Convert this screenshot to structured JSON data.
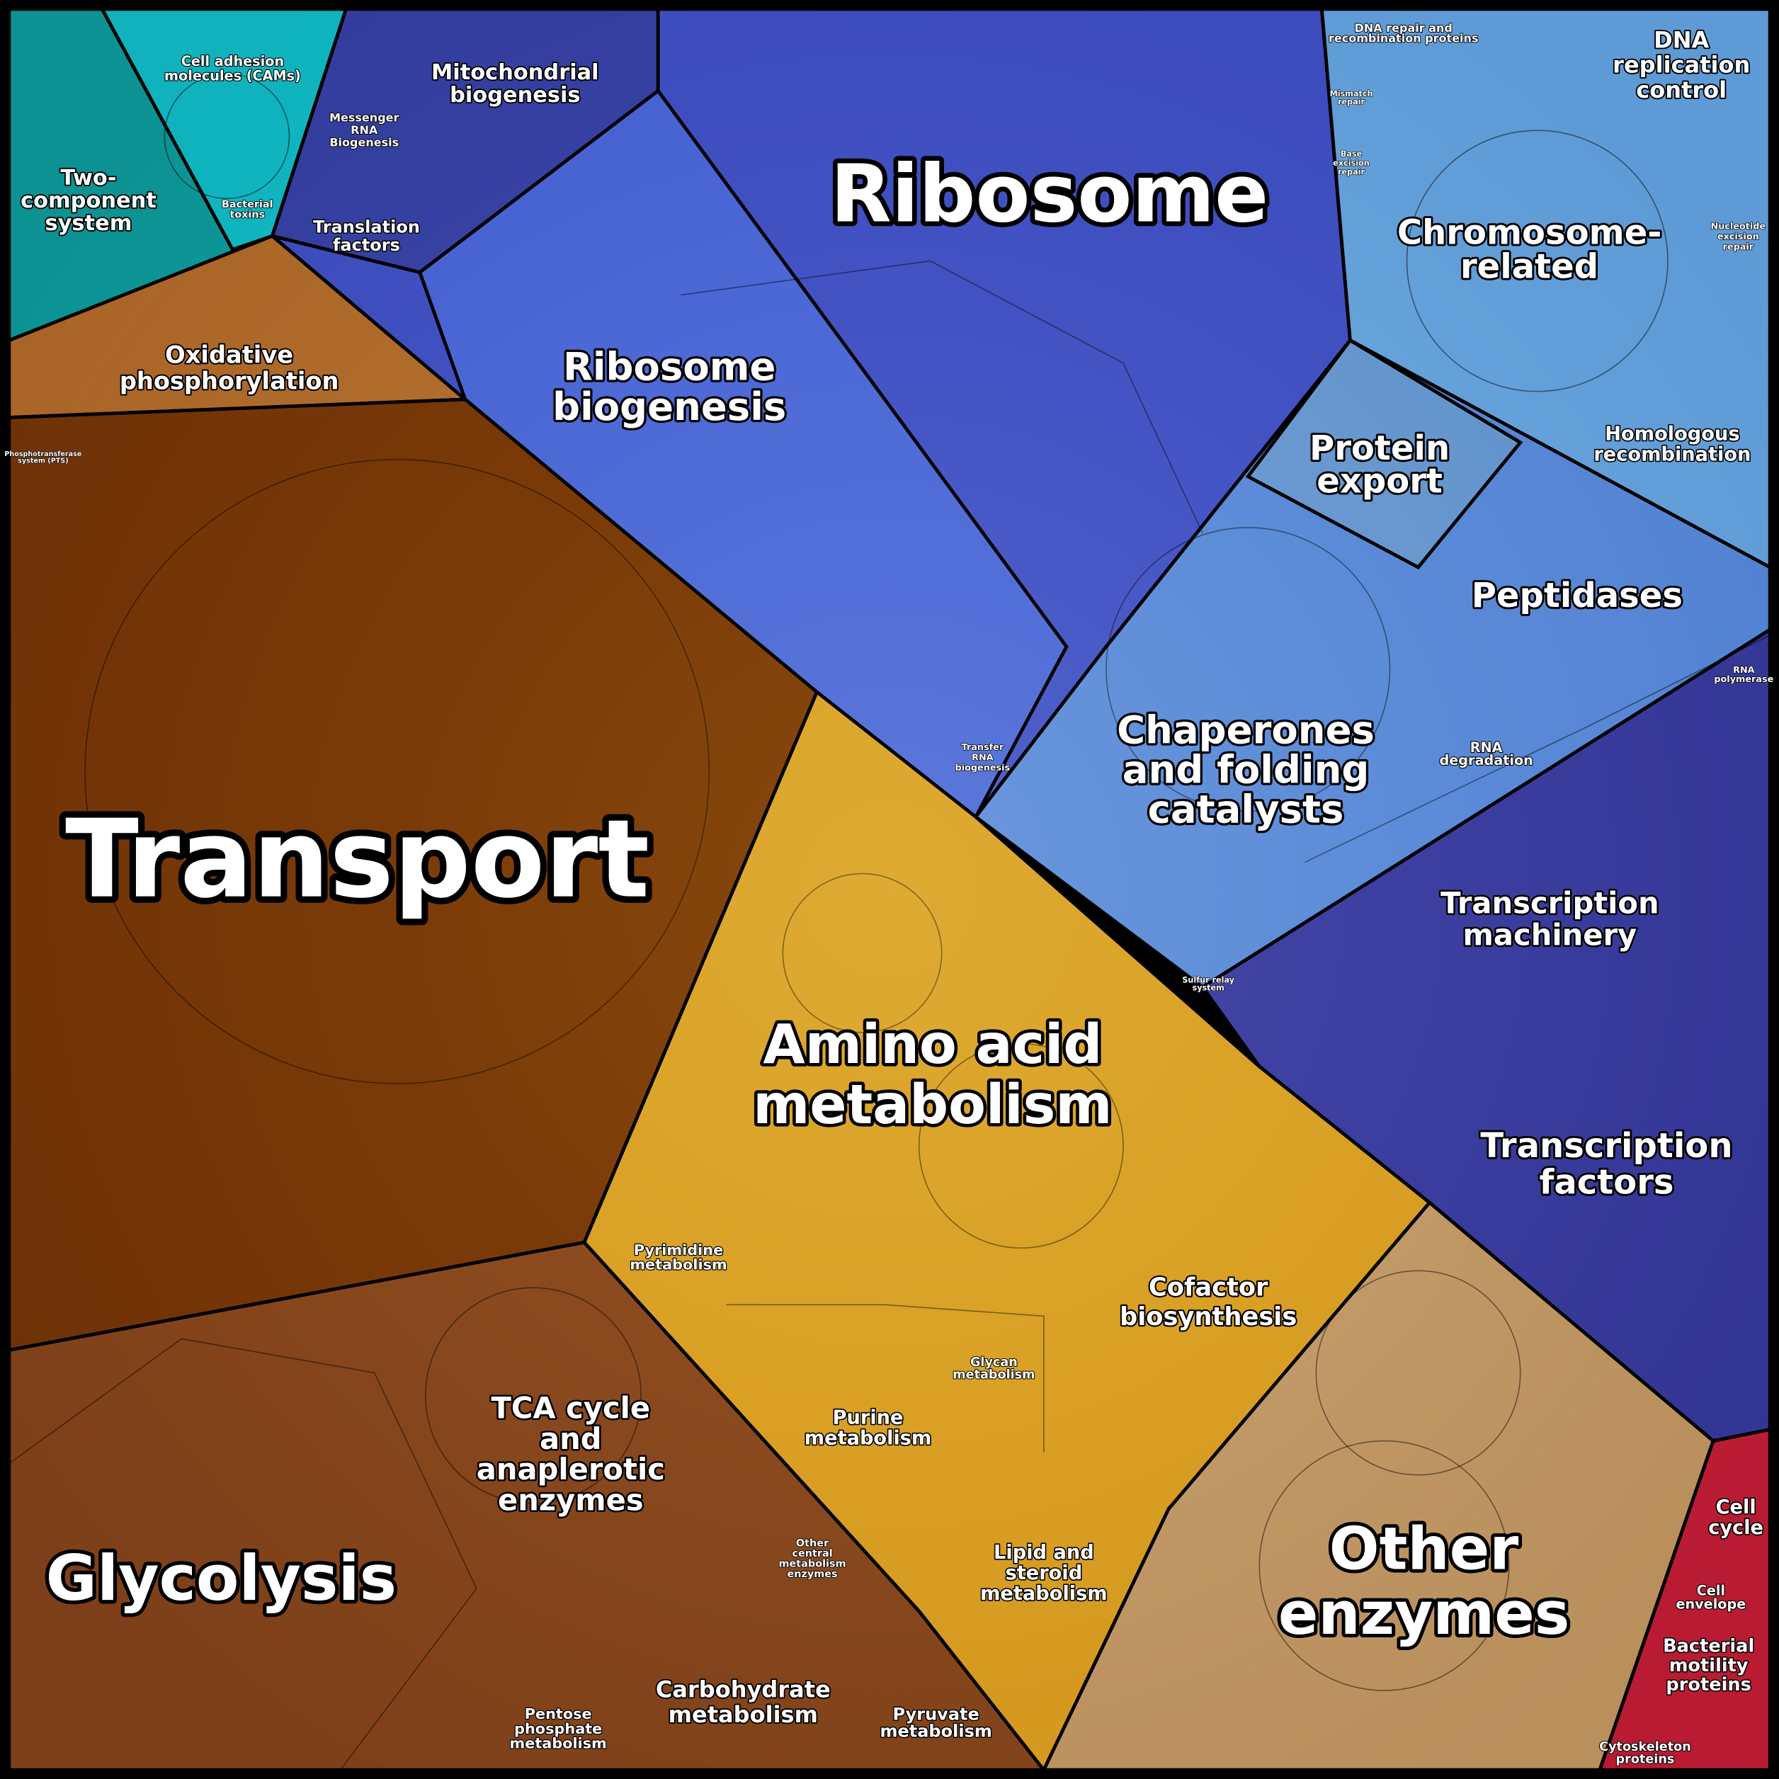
{
  "regions": [
    {
      "lines": [
        "Transport"
      ]
    },
    {
      "lines": [
        "Glycolysis"
      ]
    },
    {
      "lines": [
        "Amino acid",
        "metabolism"
      ]
    },
    {
      "lines": [
        "Ribosome"
      ]
    },
    {
      "lines": [
        "Ribosome",
        "biogenesis"
      ]
    },
    {
      "lines": [
        "Other",
        "enzymes"
      ]
    },
    {
      "lines": [
        "Chaperones",
        "and folding",
        "catalysts"
      ]
    },
    {
      "lines": [
        "Chromosome-",
        "related"
      ]
    },
    {
      "lines": [
        "Transcription",
        "machinery"
      ]
    },
    {
      "lines": [
        "Transcription",
        "factors"
      ]
    },
    {
      "lines": [
        "Protein",
        "export"
      ]
    },
    {
      "lines": [
        "Peptidases"
      ]
    },
    {
      "lines": [
        "Homologous",
        "recombination"
      ]
    },
    {
      "lines": [
        "DNA",
        "replication",
        "control"
      ]
    },
    {
      "lines": [
        "TCA cycle",
        "and",
        "anaplerotic",
        "enzymes"
      ]
    },
    {
      "lines": [
        "Cofactor",
        "biosynthesis"
      ]
    },
    {
      "lines": [
        "Oxidative",
        "phosphorylation"
      ]
    },
    {
      "lines": [
        "Mitochondrial",
        "biogenesis"
      ]
    },
    {
      "lines": [
        "Two-",
        "component",
        "system"
      ]
    },
    {
      "lines": [
        "Cell adhesion",
        "molecules (CAMs)"
      ]
    },
    {
      "lines": [
        "Messenger",
        "RNA",
        "Biogenesis"
      ]
    },
    {
      "lines": [
        "Translation",
        "factors"
      ]
    },
    {
      "lines": [
        "Bacterial",
        "toxins"
      ]
    },
    {
      "lines": [
        "Pyrimidine",
        "metabolism"
      ]
    },
    {
      "lines": [
        "Purine",
        "metabolism"
      ]
    },
    {
      "lines": [
        "Glycan",
        "metabolism"
      ]
    },
    {
      "lines": [
        "Lipid and",
        "steroid",
        "metabolism"
      ]
    },
    {
      "lines": [
        "Carbohydrate",
        "metabolism"
      ]
    },
    {
      "lines": [
        "Pyruvate",
        "metabolism"
      ]
    },
    {
      "lines": [
        "Pentose",
        "phosphate",
        "metabolism"
      ]
    },
    {
      "lines": [
        "Other",
        "central",
        "metabolism",
        "enzymes"
      ]
    },
    {
      "lines": [
        "Cell",
        "cycle"
      ]
    },
    {
      "lines": [
        "Cell",
        "envelope"
      ]
    },
    {
      "lines": [
        "Bacterial",
        "motility",
        "proteins"
      ]
    },
    {
      "lines": [
        "Cytoskeleton",
        "proteins"
      ]
    },
    {
      "lines": [
        "RNA",
        "degradation"
      ]
    },
    {
      "lines": [
        "RNA",
        "polymerase"
      ]
    },
    {
      "lines": [
        "Transfer",
        "RNA",
        "biogenesis"
      ]
    },
    {
      "lines": [
        "Sulfur relay",
        "system"
      ]
    },
    {
      "lines": [
        "DNA repair and",
        "recombination proteins"
      ]
    },
    {
      "lines": [
        "Mismatch",
        "repair"
      ]
    },
    {
      "lines": [
        "Base",
        "excision",
        "repair"
      ]
    },
    {
      "lines": [
        "Nucleotide",
        "excision",
        "repair"
      ]
    },
    {
      "lines": [
        "Phosphotransferase",
        "system (PTS)"
      ]
    }
  ]
}
